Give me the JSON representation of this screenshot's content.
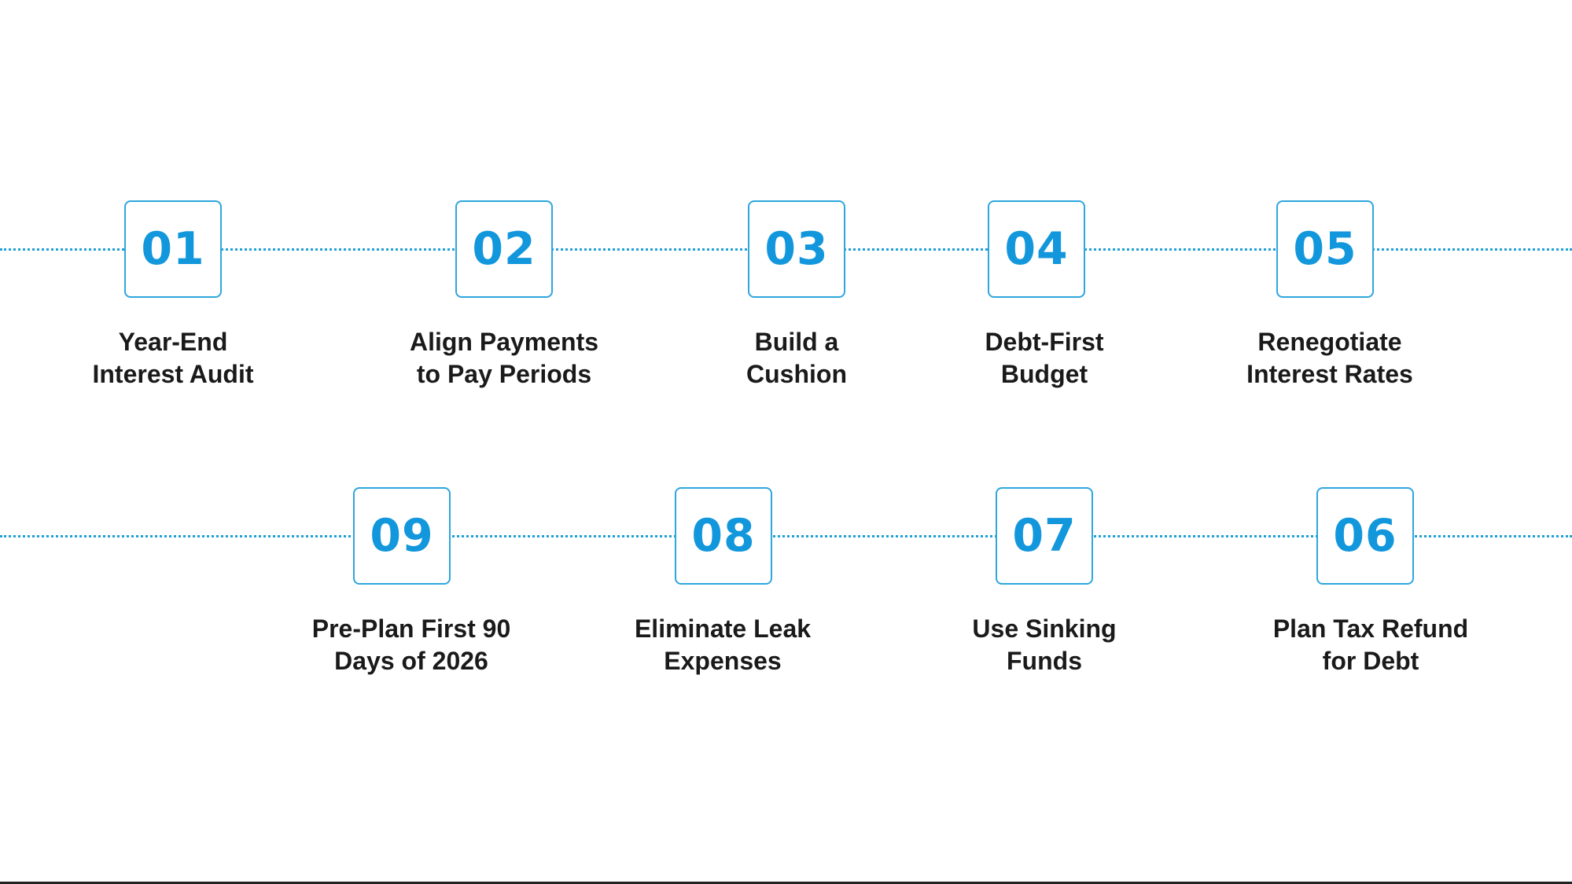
{
  "colors": {
    "accent": "#1297dc",
    "box_border": "#2ea6de",
    "dotted_line": "#1fa0d6",
    "label_text": "#1a1a1a",
    "background": "#ffffff"
  },
  "steps": [
    {
      "number": "01",
      "label": "Year-End\nInterest Audit"
    },
    {
      "number": "02",
      "label": "Align Payments\nto Pay Periods"
    },
    {
      "number": "03",
      "label": "Build a\nCushion"
    },
    {
      "number": "04",
      "label": "Debt-First\nBudget"
    },
    {
      "number": "05",
      "label": "Renegotiate\nInterest Rates"
    },
    {
      "number": "06",
      "label": "Plan Tax Refund\nfor Debt"
    },
    {
      "number": "07",
      "label": "Use Sinking\nFunds"
    },
    {
      "number": "08",
      "label": "Eliminate Leak\nExpenses"
    },
    {
      "number": "09",
      "label": "Pre-Plan First 90\nDays of 2026"
    }
  ]
}
